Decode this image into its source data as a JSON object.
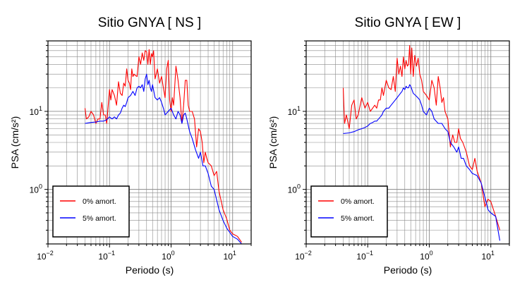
{
  "chart_data": [
    {
      "type": "line",
      "title": "Sitio GNYA [ NS ]",
      "xlabel": "Periodo (s)",
      "ylabel": "PSA (cm/s²)",
      "xscale": "log",
      "yscale": "log",
      "xlim": [
        0.01,
        20
      ],
      "ylim": [
        0.2,
        80
      ],
      "grid": true,
      "legend_position": "bottom-left",
      "x_ticks": [
        {
          "base": "10",
          "exp": "−2",
          "value": 0.01
        },
        {
          "base": "10",
          "exp": "−1",
          "value": 0.1
        },
        {
          "base": "10",
          "exp": "0",
          "value": 1
        },
        {
          "base": "10",
          "exp": "1",
          "value": 10
        }
      ],
      "y_ticks": [
        {
          "base": "10",
          "exp": "0",
          "value": 1
        },
        {
          "base": "10",
          "exp": "1",
          "value": 10
        }
      ],
      "series": [
        {
          "name": "0% amort.",
          "color": "#ff0000",
          "x": [
            0.04,
            0.042,
            0.046,
            0.05,
            0.055,
            0.06,
            0.065,
            0.07,
            0.075,
            0.08,
            0.085,
            0.09,
            0.1,
            0.105,
            0.11,
            0.12,
            0.13,
            0.14,
            0.15,
            0.16,
            0.17,
            0.18,
            0.19,
            0.2,
            0.21,
            0.22,
            0.23,
            0.24,
            0.25,
            0.26,
            0.28,
            0.3,
            0.32,
            0.34,
            0.36,
            0.38,
            0.4,
            0.42,
            0.44,
            0.46,
            0.48,
            0.5,
            0.52,
            0.55,
            0.6,
            0.65,
            0.7,
            0.75,
            0.8,
            0.85,
            0.9,
            0.95,
            1.0,
            1.05,
            1.1,
            1.2,
            1.3,
            1.4,
            1.5,
            1.6,
            1.7,
            1.8,
            1.9,
            2.0,
            2.2,
            2.4,
            2.6,
            2.8,
            3.0,
            3.2,
            3.4,
            3.6,
            3.8,
            4.0,
            4.5,
            5.0,
            5.5,
            6.0,
            7.0,
            8.0,
            9.0,
            10.0,
            12.0,
            14.0
          ],
          "y": [
            11,
            8,
            8.5,
            10,
            9,
            7,
            8,
            8,
            13,
            9,
            9,
            7,
            19,
            14,
            19,
            16,
            12,
            24,
            17,
            16,
            23,
            21,
            35,
            25,
            23,
            19,
            35,
            28,
            30,
            29,
            28,
            50,
            40,
            56,
            45,
            60,
            58,
            40,
            62,
            40,
            55,
            50,
            60,
            26,
            35,
            23,
            28,
            20,
            15,
            35,
            45,
            14,
            10,
            15,
            12,
            38,
            25,
            15,
            7,
            12,
            25,
            25,
            12,
            10,
            10,
            8,
            3.5,
            6,
            5.5,
            4,
            2.2,
            3,
            2.5,
            2.2,
            2,
            1.5,
            1.7,
            0.95,
            0.55,
            0.42,
            0.3,
            0.27,
            0.25,
            0.21
          ]
        },
        {
          "name": "5% amort.",
          "color": "#0000ff",
          "x": [
            0.04,
            0.05,
            0.06,
            0.07,
            0.08,
            0.09,
            0.1,
            0.11,
            0.12,
            0.13,
            0.14,
            0.15,
            0.16,
            0.17,
            0.18,
            0.19,
            0.2,
            0.22,
            0.24,
            0.26,
            0.28,
            0.3,
            0.32,
            0.34,
            0.36,
            0.38,
            0.4,
            0.42,
            0.44,
            0.46,
            0.48,
            0.5,
            0.55,
            0.6,
            0.65,
            0.7,
            0.75,
            0.8,
            0.9,
            1.0,
            1.1,
            1.2,
            1.3,
            1.4,
            1.5,
            1.6,
            1.7,
            1.8,
            2.0,
            2.2,
            2.5,
            2.8,
            3.0,
            3.3,
            3.6,
            4.0,
            4.5,
            5.0,
            6.0,
            7.0,
            8.0,
            10.0,
            12.0,
            14.0
          ],
          "y": [
            7,
            7.2,
            7.3,
            7.5,
            7.5,
            7.8,
            8.5,
            8,
            8.5,
            8,
            9,
            9.5,
            11,
            12,
            11.5,
            13,
            15,
            16,
            18,
            16,
            20,
            21,
            20,
            22,
            18,
            26,
            30,
            22,
            25,
            20,
            18,
            22,
            15,
            14,
            15,
            13,
            11,
            9,
            10,
            11,
            9,
            8,
            10,
            9,
            7,
            9,
            9.5,
            8,
            5.5,
            4.5,
            3.2,
            2.5,
            3,
            2,
            2,
            1.6,
            1.1,
            1.0,
            0.55,
            0.4,
            0.32,
            0.25,
            0.23,
            0.2
          ]
        }
      ]
    },
    {
      "type": "line",
      "title": "Sitio GNYA [ EW ]",
      "xlabel": "Periodo (s)",
      "ylabel": "PSA (cm/s²)",
      "xscale": "log",
      "yscale": "log",
      "xlim": [
        0.01,
        20
      ],
      "ylim": [
        0.2,
        80
      ],
      "grid": true,
      "legend_position": "bottom-left",
      "x_ticks": [
        {
          "base": "10",
          "exp": "−2",
          "value": 0.01
        },
        {
          "base": "10",
          "exp": "−1",
          "value": 0.1
        },
        {
          "base": "10",
          "exp": "0",
          "value": 1
        },
        {
          "base": "10",
          "exp": "1",
          "value": 10
        }
      ],
      "y_ticks": [
        {
          "base": "10",
          "exp": "0",
          "value": 1
        },
        {
          "base": "10",
          "exp": "1",
          "value": 10
        }
      ],
      "series": [
        {
          "name": "0% amort.",
          "color": "#ff0000",
          "x": [
            0.04,
            0.042,
            0.045,
            0.05,
            0.055,
            0.06,
            0.065,
            0.07,
            0.08,
            0.09,
            0.1,
            0.11,
            0.12,
            0.13,
            0.14,
            0.15,
            0.16,
            0.17,
            0.18,
            0.2,
            0.22,
            0.24,
            0.26,
            0.28,
            0.3,
            0.32,
            0.34,
            0.36,
            0.38,
            0.4,
            0.42,
            0.44,
            0.46,
            0.48,
            0.5,
            0.52,
            0.55,
            0.58,
            0.62,
            0.66,
            0.7,
            0.75,
            0.8,
            0.9,
            1.0,
            1.1,
            1.2,
            1.3,
            1.4,
            1.5,
            1.6,
            1.7,
            1.8,
            2.0,
            2.2,
            2.4,
            2.6,
            2.8,
            3.0,
            3.2,
            3.5,
            4.0,
            4.5,
            5.0,
            5.5,
            6.0,
            7.0,
            8.0,
            9.0,
            10.0,
            12.0,
            14.0
          ],
          "y": [
            20,
            7,
            9,
            6,
            12,
            14,
            8,
            9,
            15,
            11,
            13,
            10,
            11,
            12,
            11,
            14,
            14,
            20,
            16,
            25,
            20,
            19,
            28,
            18,
            48,
            30,
            38,
            28,
            50,
            35,
            45,
            38,
            40,
            70,
            30,
            65,
            28,
            52,
            38,
            48,
            30,
            25,
            18,
            16,
            14,
            25,
            20,
            12,
            28,
            20,
            13,
            15,
            10,
            8,
            3.5,
            5,
            4,
            4,
            6,
            4.5,
            4,
            3,
            2,
            1.8,
            2.5,
            1.7,
            1.2,
            0.6,
            0.75,
            0.7,
            0.45,
            0.3
          ]
        },
        {
          "name": "5% amort.",
          "color": "#0000ff",
          "x": [
            0.04,
            0.05,
            0.06,
            0.07,
            0.08,
            0.09,
            0.1,
            0.11,
            0.12,
            0.13,
            0.14,
            0.15,
            0.16,
            0.17,
            0.18,
            0.2,
            0.22,
            0.24,
            0.26,
            0.28,
            0.3,
            0.32,
            0.34,
            0.36,
            0.38,
            0.4,
            0.42,
            0.44,
            0.46,
            0.48,
            0.5,
            0.55,
            0.6,
            0.65,
            0.7,
            0.75,
            0.8,
            0.9,
            1.0,
            1.1,
            1.2,
            1.4,
            1.6,
            1.8,
            2.0,
            2.2,
            2.5,
            2.8,
            3.0,
            3.3,
            3.6,
            4.0,
            4.5,
            5.0,
            6.0,
            7.0,
            8.0,
            9.0,
            10.0,
            12.0,
            14.0
          ],
          "y": [
            5.2,
            5.3,
            5.5,
            5.8,
            6,
            6.2,
            6.5,
            7,
            7.2,
            7.5,
            7.5,
            8,
            8.5,
            9,
            10,
            11,
            11,
            12,
            13,
            14,
            15,
            16,
            17,
            18,
            20,
            19,
            21,
            20,
            20,
            22,
            21,
            17,
            16,
            15,
            14,
            12,
            10,
            9,
            11,
            10,
            8,
            7,
            7,
            6,
            5.5,
            4,
            3.5,
            3,
            3.5,
            2.5,
            2.5,
            2,
            1.8,
            1.6,
            1.5,
            1.2,
            0.8,
            0.55,
            0.5,
            0.45,
            0.22
          ]
        }
      ]
    }
  ]
}
